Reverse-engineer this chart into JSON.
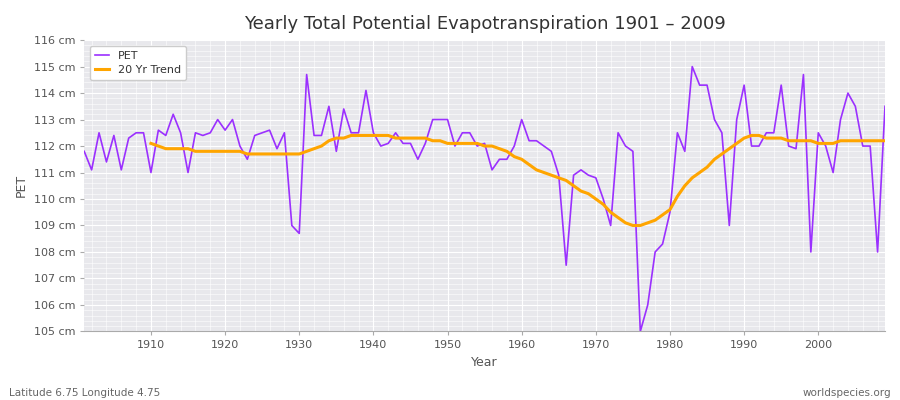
{
  "title": "Yearly Total Potential Evapotranspiration 1901 – 2009",
  "xlabel": "Year",
  "ylabel": "PET",
  "bottom_left_label": "Latitude 6.75 Longitude 4.75",
  "bottom_right_label": "worldspecies.org",
  "pet_color": "#9B30FF",
  "trend_color": "#FFA500",
  "bg_color": "#ffffff",
  "plot_bg_color": "#E8E8EC",
  "ylim": [
    105,
    116
  ],
  "xlim": [
    1901,
    2009
  ],
  "years": [
    1901,
    1902,
    1903,
    1904,
    1905,
    1906,
    1907,
    1908,
    1909,
    1910,
    1911,
    1912,
    1913,
    1914,
    1915,
    1916,
    1917,
    1918,
    1919,
    1920,
    1921,
    1922,
    1923,
    1924,
    1925,
    1926,
    1927,
    1928,
    1929,
    1930,
    1931,
    1932,
    1933,
    1934,
    1935,
    1936,
    1937,
    1938,
    1939,
    1940,
    1941,
    1942,
    1943,
    1944,
    1945,
    1946,
    1947,
    1948,
    1949,
    1950,
    1951,
    1952,
    1953,
    1954,
    1955,
    1956,
    1957,
    1958,
    1959,
    1960,
    1961,
    1962,
    1963,
    1964,
    1965,
    1966,
    1967,
    1968,
    1969,
    1970,
    1971,
    1972,
    1973,
    1974,
    1975,
    1976,
    1977,
    1978,
    1979,
    1980,
    1981,
    1982,
    1983,
    1984,
    1985,
    1986,
    1987,
    1988,
    1989,
    1990,
    1991,
    1992,
    1993,
    1994,
    1995,
    1996,
    1997,
    1998,
    1999,
    2000,
    2001,
    2002,
    2003,
    2004,
    2005,
    2006,
    2007,
    2008,
    2009
  ],
  "pet_values": [
    111.8,
    111.1,
    112.5,
    111.4,
    112.4,
    111.1,
    112.3,
    112.5,
    112.5,
    111.0,
    112.6,
    112.4,
    113.2,
    112.5,
    111.0,
    112.5,
    112.4,
    112.5,
    113.0,
    112.6,
    113.0,
    112.0,
    111.5,
    112.4,
    112.5,
    112.6,
    111.9,
    112.5,
    109.0,
    108.7,
    114.7,
    112.4,
    112.4,
    113.5,
    111.8,
    113.4,
    112.5,
    112.5,
    114.1,
    112.5,
    112.0,
    112.1,
    112.5,
    112.1,
    112.1,
    111.5,
    112.1,
    113.0,
    113.0,
    113.0,
    112.0,
    112.5,
    112.5,
    112.0,
    112.1,
    111.1,
    111.5,
    111.5,
    112.0,
    113.0,
    112.2,
    112.2,
    112.0,
    111.8,
    110.9,
    107.5,
    110.9,
    111.1,
    110.9,
    110.8,
    110.0,
    109.0,
    112.5,
    112.0,
    111.8,
    105.0,
    106.0,
    108.0,
    108.3,
    109.5,
    112.5,
    111.8,
    115.0,
    114.3,
    114.3,
    113.0,
    112.5,
    109.0,
    113.0,
    114.3,
    112.0,
    112.0,
    112.5,
    112.5,
    114.3,
    112.0,
    111.9,
    114.7,
    108.0,
    112.5,
    112.0,
    111.0,
    113.0,
    114.0,
    113.5,
    112.0,
    112.0,
    108.0,
    113.5
  ],
  "trend_years": [
    1910,
    1911,
    1912,
    1913,
    1914,
    1915,
    1916,
    1917,
    1918,
    1919,
    1920,
    1921,
    1922,
    1923,
    1924,
    1925,
    1926,
    1927,
    1928,
    1929,
    1930,
    1931,
    1932,
    1933,
    1934,
    1935,
    1936,
    1937,
    1938,
    1939,
    1940,
    1941,
    1942,
    1943,
    1944,
    1945,
    1946,
    1947,
    1948,
    1949,
    1950,
    1951,
    1952,
    1953,
    1954,
    1955,
    1956,
    1957,
    1958,
    1959,
    1960,
    1961,
    1962,
    1963,
    1964,
    1965,
    1966,
    1967,
    1968,
    1969,
    1970,
    1971,
    1972,
    1973,
    1974,
    1975,
    1976,
    1977,
    1978,
    1979,
    1980,
    1981,
    1982,
    1983,
    1984,
    1985,
    1986,
    1987,
    1988,
    1989,
    1990,
    1991,
    1992,
    1993,
    1994,
    1995,
    1996,
    1997,
    1998,
    1999,
    2000,
    2001,
    2002,
    2003,
    2004,
    2005,
    2006,
    2007,
    2008,
    2009
  ],
  "trend_values": [
    112.1,
    112.0,
    111.9,
    111.9,
    111.9,
    111.9,
    111.8,
    111.8,
    111.8,
    111.8,
    111.8,
    111.8,
    111.8,
    111.7,
    111.7,
    111.7,
    111.7,
    111.7,
    111.7,
    111.7,
    111.7,
    111.8,
    111.9,
    112.0,
    112.2,
    112.3,
    112.3,
    112.4,
    112.4,
    112.4,
    112.4,
    112.4,
    112.4,
    112.3,
    112.3,
    112.3,
    112.3,
    112.3,
    112.2,
    112.2,
    112.1,
    112.1,
    112.1,
    112.1,
    112.1,
    112.0,
    112.0,
    111.9,
    111.8,
    111.6,
    111.5,
    111.3,
    111.1,
    111.0,
    110.9,
    110.8,
    110.7,
    110.5,
    110.3,
    110.2,
    110.0,
    109.8,
    109.5,
    109.3,
    109.1,
    109.0,
    109.0,
    109.1,
    109.2,
    109.4,
    109.6,
    110.1,
    110.5,
    110.8,
    111.0,
    111.2,
    111.5,
    111.7,
    111.9,
    112.1,
    112.3,
    112.4,
    112.4,
    112.3,
    112.3,
    112.3,
    112.2,
    112.2,
    112.2,
    112.2,
    112.1,
    112.1,
    112.1,
    112.2,
    112.2,
    112.2,
    112.2,
    112.2,
    112.2,
    112.2
  ]
}
